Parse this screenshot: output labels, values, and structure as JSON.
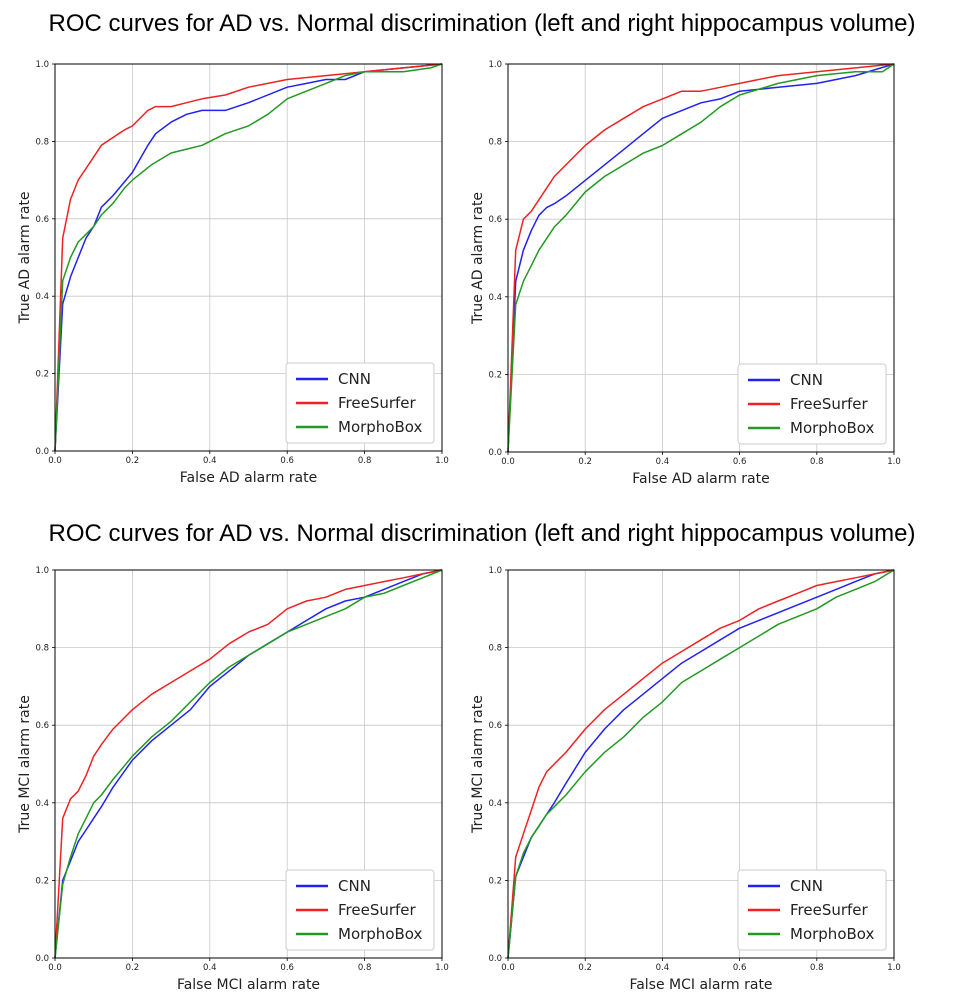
{
  "titles": {
    "top": "ROC curves for AD vs. Normal discrimination (left and right hippocampus volume)",
    "bottom": "ROC curves for AD vs. Normal discrimination (left and right hippocampus volume)"
  },
  "colors": {
    "CNN": "#2222ee",
    "FreeSurfer": "#ee2222",
    "MorphoBox": "#229922"
  },
  "chart_data": [
    {
      "type": "line",
      "xlabel": "False AD alarm rate",
      "ylabel": "True AD alarm rate",
      "xlim": [
        0,
        1
      ],
      "ylim": [
        0,
        1
      ],
      "xticks": [
        "0.0",
        "0.2",
        "0.4",
        "0.6",
        "0.8",
        "1.0"
      ],
      "yticks": [
        "0.0",
        "0.2",
        "0.4",
        "0.6",
        "0.8",
        "1.0"
      ],
      "grid": true,
      "legend": "bottom-right",
      "series": [
        {
          "name": "CNN",
          "x": [
            0,
            0.02,
            0.04,
            0.06,
            0.08,
            0.1,
            0.12,
            0.15,
            0.2,
            0.24,
            0.26,
            0.3,
            0.34,
            0.38,
            0.44,
            0.5,
            0.6,
            0.65,
            0.7,
            0.75,
            0.8,
            0.9,
            1.0
          ],
          "y": [
            0,
            0.38,
            0.45,
            0.5,
            0.55,
            0.58,
            0.63,
            0.66,
            0.72,
            0.79,
            0.82,
            0.85,
            0.87,
            0.88,
            0.88,
            0.9,
            0.94,
            0.95,
            0.96,
            0.96,
            0.98,
            0.99,
            1.0
          ]
        },
        {
          "name": "FreeSurfer",
          "x": [
            0,
            0.02,
            0.04,
            0.06,
            0.08,
            0.1,
            0.12,
            0.15,
            0.18,
            0.2,
            0.24,
            0.26,
            0.3,
            0.34,
            0.38,
            0.44,
            0.5,
            0.6,
            0.7,
            0.8,
            0.9,
            1.0
          ],
          "y": [
            0,
            0.55,
            0.65,
            0.7,
            0.73,
            0.76,
            0.79,
            0.81,
            0.83,
            0.84,
            0.88,
            0.89,
            0.89,
            0.9,
            0.91,
            0.92,
            0.94,
            0.96,
            0.97,
            0.98,
            0.99,
            1.0
          ]
        },
        {
          "name": "MorphoBox",
          "x": [
            0,
            0.02,
            0.04,
            0.06,
            0.08,
            0.1,
            0.12,
            0.15,
            0.18,
            0.2,
            0.25,
            0.3,
            0.34,
            0.38,
            0.44,
            0.5,
            0.55,
            0.6,
            0.65,
            0.7,
            0.75,
            0.8,
            0.9,
            0.97,
            1.0
          ],
          "y": [
            0,
            0.44,
            0.5,
            0.54,
            0.56,
            0.58,
            0.61,
            0.64,
            0.68,
            0.7,
            0.74,
            0.77,
            0.78,
            0.79,
            0.82,
            0.84,
            0.87,
            0.91,
            0.93,
            0.95,
            0.97,
            0.98,
            0.98,
            0.99,
            1.0
          ]
        }
      ]
    },
    {
      "type": "line",
      "xlabel": "False AD alarm rate",
      "ylabel": "True AD alarm rate",
      "xlim": [
        0,
        1
      ],
      "ylim": [
        0,
        1
      ],
      "xticks": [
        "0.0",
        "0.2",
        "0.4",
        "0.6",
        "0.8",
        "1.0"
      ],
      "yticks": [
        "0.0",
        "0.2",
        "0.4",
        "0.6",
        "0.8",
        "1.0"
      ],
      "grid": true,
      "legend": "bottom-right",
      "series": [
        {
          "name": "CNN",
          "x": [
            0,
            0.02,
            0.04,
            0.06,
            0.08,
            0.1,
            0.12,
            0.15,
            0.2,
            0.25,
            0.3,
            0.35,
            0.4,
            0.45,
            0.5,
            0.55,
            0.6,
            0.7,
            0.8,
            0.9,
            1.0
          ],
          "y": [
            0,
            0.44,
            0.52,
            0.57,
            0.61,
            0.63,
            0.64,
            0.66,
            0.7,
            0.74,
            0.78,
            0.82,
            0.86,
            0.88,
            0.9,
            0.91,
            0.93,
            0.94,
            0.95,
            0.97,
            1.0
          ]
        },
        {
          "name": "FreeSurfer",
          "x": [
            0,
            0.02,
            0.04,
            0.06,
            0.08,
            0.1,
            0.12,
            0.15,
            0.2,
            0.25,
            0.3,
            0.35,
            0.4,
            0.45,
            0.5,
            0.55,
            0.6,
            0.7,
            0.8,
            0.9,
            1.0
          ],
          "y": [
            0,
            0.52,
            0.6,
            0.62,
            0.65,
            0.68,
            0.71,
            0.74,
            0.79,
            0.83,
            0.86,
            0.89,
            0.91,
            0.93,
            0.93,
            0.94,
            0.95,
            0.97,
            0.98,
            0.99,
            1.0
          ]
        },
        {
          "name": "MorphoBox",
          "x": [
            0,
            0.02,
            0.04,
            0.06,
            0.08,
            0.1,
            0.12,
            0.15,
            0.2,
            0.25,
            0.3,
            0.35,
            0.4,
            0.45,
            0.5,
            0.55,
            0.6,
            0.7,
            0.8,
            0.9,
            0.97,
            1.0
          ],
          "y": [
            0,
            0.38,
            0.44,
            0.48,
            0.52,
            0.55,
            0.58,
            0.61,
            0.67,
            0.71,
            0.74,
            0.77,
            0.79,
            0.82,
            0.85,
            0.89,
            0.92,
            0.95,
            0.97,
            0.98,
            0.98,
            1.0
          ]
        }
      ]
    },
    {
      "type": "line",
      "xlabel": "False MCI alarm rate",
      "ylabel": "True MCI alarm rate",
      "xlim": [
        0,
        1
      ],
      "ylim": [
        0,
        1
      ],
      "xticks": [
        "0.0",
        "0.2",
        "0.4",
        "0.6",
        "0.8",
        "1.0"
      ],
      "yticks": [
        "0.0",
        "0.2",
        "0.4",
        "0.6",
        "0.8",
        "1.0"
      ],
      "grid": true,
      "legend": "bottom-right",
      "series": [
        {
          "name": "CNN",
          "x": [
            0,
            0.02,
            0.04,
            0.06,
            0.08,
            0.1,
            0.12,
            0.15,
            0.2,
            0.25,
            0.3,
            0.35,
            0.4,
            0.45,
            0.5,
            0.55,
            0.6,
            0.65,
            0.7,
            0.75,
            0.8,
            0.85,
            0.9,
            0.95,
            1.0
          ],
          "y": [
            0,
            0.2,
            0.25,
            0.3,
            0.33,
            0.36,
            0.39,
            0.44,
            0.51,
            0.56,
            0.6,
            0.64,
            0.7,
            0.74,
            0.78,
            0.81,
            0.84,
            0.87,
            0.9,
            0.92,
            0.93,
            0.95,
            0.97,
            0.99,
            1.0
          ]
        },
        {
          "name": "FreeSurfer",
          "x": [
            0,
            0.02,
            0.04,
            0.06,
            0.08,
            0.1,
            0.12,
            0.15,
            0.2,
            0.25,
            0.3,
            0.35,
            0.4,
            0.45,
            0.5,
            0.55,
            0.6,
            0.65,
            0.7,
            0.75,
            0.8,
            0.85,
            0.9,
            0.95,
            1.0
          ],
          "y": [
            0,
            0.36,
            0.41,
            0.43,
            0.47,
            0.52,
            0.55,
            0.59,
            0.64,
            0.68,
            0.71,
            0.74,
            0.77,
            0.81,
            0.84,
            0.86,
            0.9,
            0.92,
            0.93,
            0.95,
            0.96,
            0.97,
            0.98,
            0.99,
            1.0
          ]
        },
        {
          "name": "MorphoBox",
          "x": [
            0,
            0.02,
            0.04,
            0.06,
            0.08,
            0.1,
            0.12,
            0.15,
            0.2,
            0.25,
            0.3,
            0.35,
            0.4,
            0.45,
            0.5,
            0.55,
            0.6,
            0.65,
            0.7,
            0.75,
            0.8,
            0.85,
            0.9,
            0.95,
            1.0
          ],
          "y": [
            0,
            0.19,
            0.26,
            0.32,
            0.36,
            0.4,
            0.42,
            0.46,
            0.52,
            0.57,
            0.61,
            0.66,
            0.71,
            0.75,
            0.78,
            0.81,
            0.84,
            0.86,
            0.88,
            0.9,
            0.93,
            0.94,
            0.96,
            0.98,
            1.0
          ]
        }
      ]
    },
    {
      "type": "line",
      "xlabel": "False MCI alarm rate",
      "ylabel": "True MCI alarm rate",
      "xlim": [
        0,
        1
      ],
      "ylim": [
        0,
        1
      ],
      "xticks": [
        "0.0",
        "0.2",
        "0.4",
        "0.6",
        "0.8",
        "1.0"
      ],
      "yticks": [
        "0.0",
        "0.2",
        "0.4",
        "0.6",
        "0.8",
        "1.0"
      ],
      "grid": true,
      "legend": "bottom-right",
      "series": [
        {
          "name": "CNN",
          "x": [
            0,
            0.02,
            0.04,
            0.06,
            0.08,
            0.1,
            0.12,
            0.15,
            0.2,
            0.25,
            0.3,
            0.35,
            0.4,
            0.45,
            0.5,
            0.55,
            0.6,
            0.65,
            0.7,
            0.75,
            0.8,
            0.85,
            0.9,
            0.95,
            1.0
          ],
          "y": [
            0,
            0.21,
            0.26,
            0.31,
            0.34,
            0.37,
            0.4,
            0.45,
            0.53,
            0.59,
            0.64,
            0.68,
            0.72,
            0.76,
            0.79,
            0.82,
            0.85,
            0.87,
            0.89,
            0.91,
            0.93,
            0.95,
            0.97,
            0.99,
            1.0
          ]
        },
        {
          "name": "FreeSurfer",
          "x": [
            0,
            0.02,
            0.04,
            0.06,
            0.08,
            0.1,
            0.12,
            0.15,
            0.2,
            0.25,
            0.3,
            0.35,
            0.4,
            0.45,
            0.5,
            0.55,
            0.6,
            0.65,
            0.7,
            0.75,
            0.8,
            0.85,
            0.9,
            0.95,
            1.0
          ],
          "y": [
            0,
            0.26,
            0.32,
            0.38,
            0.44,
            0.48,
            0.5,
            0.53,
            0.59,
            0.64,
            0.68,
            0.72,
            0.76,
            0.79,
            0.82,
            0.85,
            0.87,
            0.9,
            0.92,
            0.94,
            0.96,
            0.97,
            0.98,
            0.99,
            1.0
          ]
        },
        {
          "name": "MorphoBox",
          "x": [
            0,
            0.02,
            0.04,
            0.06,
            0.08,
            0.1,
            0.12,
            0.15,
            0.2,
            0.25,
            0.3,
            0.35,
            0.4,
            0.45,
            0.5,
            0.55,
            0.6,
            0.65,
            0.7,
            0.75,
            0.8,
            0.85,
            0.9,
            0.95,
            1.0
          ],
          "y": [
            0,
            0.21,
            0.27,
            0.31,
            0.34,
            0.37,
            0.39,
            0.42,
            0.48,
            0.53,
            0.57,
            0.62,
            0.66,
            0.71,
            0.74,
            0.77,
            0.8,
            0.83,
            0.86,
            0.88,
            0.9,
            0.93,
            0.95,
            0.97,
            1.0
          ]
        }
      ]
    }
  ]
}
